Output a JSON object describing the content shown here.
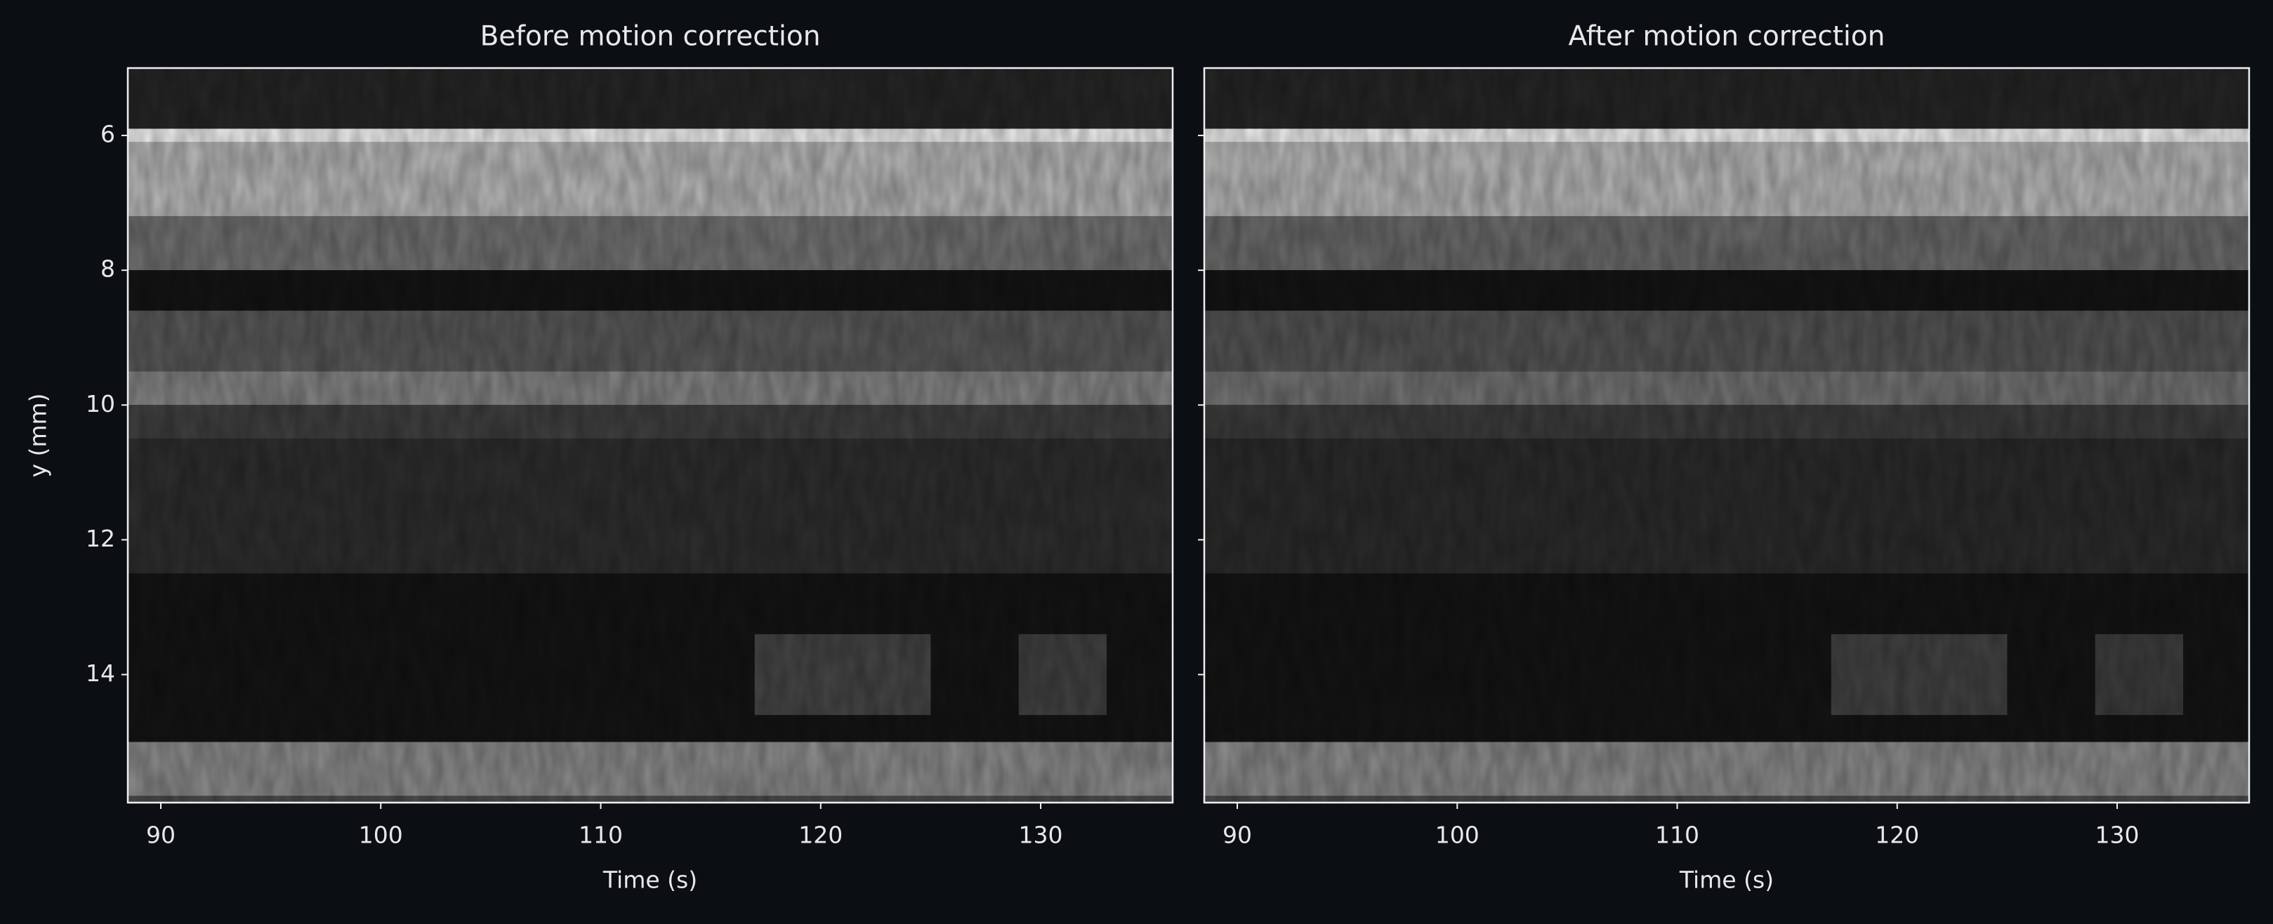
{
  "chart_data": [
    {
      "type": "heatmap",
      "title": "Before motion correction",
      "xlabel": "Time (s)",
      "ylabel": "y (mm)",
      "xlim": [
        88.5,
        136
      ],
      "ylim": [
        15.9,
        5
      ],
      "xticks": [
        90,
        100,
        110,
        120,
        130
      ],
      "yticks": [
        6,
        8,
        10,
        12,
        14
      ],
      "band_edges": [
        5,
        5.9,
        6.1,
        7.2,
        8,
        8.6,
        9.5,
        10,
        10.5,
        12.5,
        15,
        15.8,
        15.9
      ],
      "intensity": [
        0.15,
        0.95,
        0.72,
        0.45,
        0.08,
        0.35,
        0.52,
        0.25,
        0.18,
        0.08,
        0.55,
        0.3
      ],
      "events": [
        {
          "x": [
            117,
            125
          ],
          "y": [
            13.4,
            14.6
          ],
          "intensity": 0.32
        },
        {
          "x": [
            129,
            133
          ],
          "y": [
            13.4,
            14.6
          ],
          "intensity": 0.3
        }
      ]
    },
    {
      "type": "heatmap",
      "title": "After motion correction",
      "xlabel": "Time (s)",
      "sharey": true,
      "xlim": [
        88.5,
        136
      ],
      "ylim": [
        15.9,
        5
      ],
      "xticks": [
        90,
        100,
        110,
        120,
        130
      ],
      "band_edges": [
        5,
        5.9,
        6.1,
        7.2,
        8,
        8.6,
        9.5,
        10,
        10.5,
        12.5,
        15,
        15.8,
        15.9
      ],
      "intensity": [
        0.15,
        0.95,
        0.72,
        0.42,
        0.08,
        0.33,
        0.45,
        0.24,
        0.17,
        0.08,
        0.55,
        0.3
      ],
      "events": [
        {
          "x": [
            117,
            125
          ],
          "y": [
            13.4,
            14.6
          ],
          "intensity": 0.3
        },
        {
          "x": [
            129,
            133
          ],
          "y": [
            13.4,
            14.6
          ],
          "intensity": 0.28
        }
      ]
    }
  ]
}
